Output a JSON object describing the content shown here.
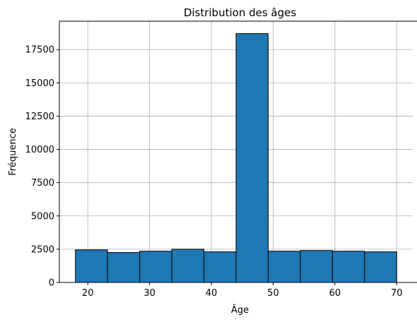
{
  "chart_data": {
    "type": "bar",
    "title": "Distribution des âges",
    "xlabel": "Âge",
    "ylabel": "Fréquence",
    "bins": [
      {
        "x0": 18.0,
        "x1": 23.2,
        "count": 2450
      },
      {
        "x0": 23.2,
        "x1": 28.4,
        "count": 2250
      },
      {
        "x0": 28.4,
        "x1": 33.6,
        "count": 2350
      },
      {
        "x0": 33.6,
        "x1": 38.8,
        "count": 2500
      },
      {
        "x0": 38.8,
        "x1": 44.0,
        "count": 2300
      },
      {
        "x0": 44.0,
        "x1": 49.2,
        "count": 18700
      },
      {
        "x0": 49.2,
        "x1": 54.4,
        "count": 2350
      },
      {
        "x0": 54.4,
        "x1": 59.6,
        "count": 2400
      },
      {
        "x0": 59.6,
        "x1": 64.8,
        "count": 2350
      },
      {
        "x0": 64.8,
        "x1": 70.0,
        "count": 2300
      }
    ],
    "xlim": [
      15.4,
      72.6
    ],
    "ylim": [
      0,
      19635
    ],
    "xticks": [
      20,
      30,
      40,
      50,
      60,
      70
    ],
    "yticks": [
      0,
      2500,
      5000,
      7500,
      10000,
      12500,
      15000,
      17500
    ],
    "grid": true,
    "bar_color": "#1f77b4",
    "edge_color": "#000000",
    "grid_color": "#b0b0b0"
  }
}
